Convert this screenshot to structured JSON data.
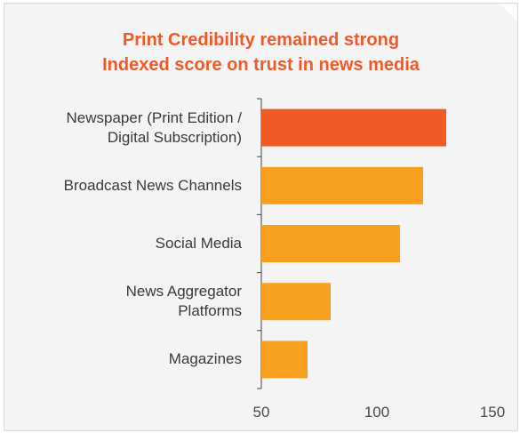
{
  "colors": {
    "title": "#ee5a2a",
    "highlight_bar": "#ee5a24",
    "bar": "#f7a01f",
    "card_background": "#f4f4f4",
    "axis": "#444444",
    "text": "#3a3a3a"
  },
  "chart_data": {
    "type": "bar",
    "orientation": "horizontal",
    "title": "Print Credibility remained strong",
    "subtitle": "Indexed score on trust in news media",
    "categories": [
      "Newspaper (Print Edition / Digital Subscription)",
      "Broadcast News Channels",
      "Social Media",
      "News Aggregator Platforms",
      "Magazines"
    ],
    "category_lines": [
      [
        "Newspaper (Print Edition /",
        "Digital Subscription)"
      ],
      [
        "Broadcast News Channels"
      ],
      [
        "Social Media"
      ],
      [
        "News Aggregator",
        "Platforms"
      ],
      [
        "Magazines"
      ]
    ],
    "values": [
      130,
      120,
      110,
      80,
      70
    ],
    "highlighted_index": 0,
    "xlim": [
      50,
      150
    ],
    "xticks": [
      50,
      100,
      150
    ],
    "xtick_labels": [
      "50",
      "100",
      "150"
    ],
    "grid": false,
    "legend": "none"
  }
}
